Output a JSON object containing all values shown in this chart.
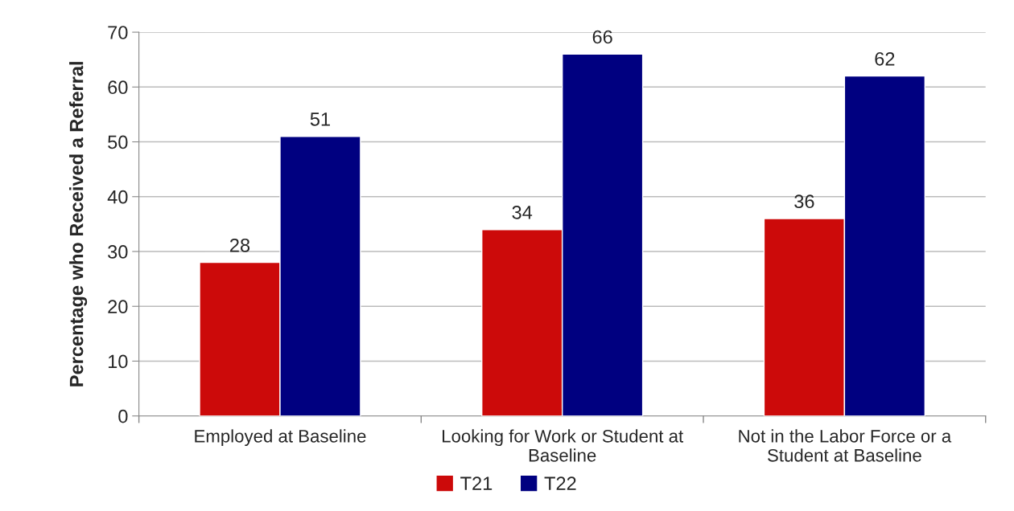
{
  "chart_data": {
    "type": "bar",
    "categories": [
      "Employed at Baseline",
      "Looking for Work or Student at\nBaseline",
      "Not in the Labor Force or a\nStudent at Baseline"
    ],
    "series": [
      {
        "name": "T21",
        "color": "#cc0a0a",
        "values": [
          28,
          34,
          36
        ]
      },
      {
        "name": "T22",
        "color": "#000080",
        "values": [
          51,
          66,
          62
        ]
      }
    ],
    "ylabel": "Percentage who Received a Referral",
    "ylim": [
      0,
      70
    ],
    "yticks": [
      0,
      10,
      20,
      30,
      40,
      50,
      60,
      70
    ],
    "grid": "y",
    "legend": "bottom",
    "data_labels": true
  }
}
